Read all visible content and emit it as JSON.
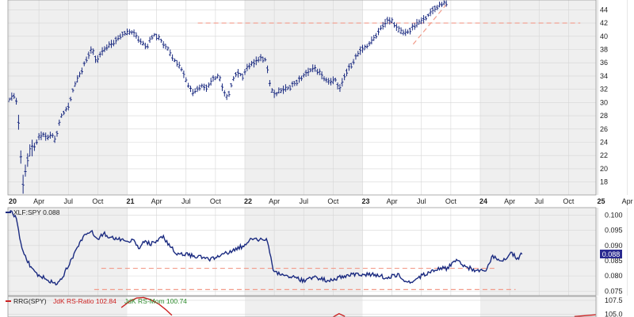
{
  "chart_data": [
    {
      "type": "ohlc",
      "ylim": [
        17,
        45
      ],
      "y_ticks": [
        18,
        20,
        22,
        24,
        26,
        28,
        30,
        32,
        34,
        36,
        38,
        40,
        42,
        44
      ],
      "x_ticks": [
        "20",
        "Apr",
        "Jul",
        "Oct",
        "21",
        "Apr",
        "Jul",
        "Oct",
        "22",
        "Apr",
        "Jul",
        "Oct",
        "23",
        "Apr",
        "Jul",
        "Oct",
        "24",
        "Apr",
        "Jul",
        "Oct",
        "25",
        "Apr"
      ],
      "price_path": [
        [
          0,
          30.5
        ],
        [
          0.04,
          31.2
        ],
        [
          0.07,
          29.5
        ],
        [
          0.085,
          24.5
        ],
        [
          0.105,
          19.5
        ],
        [
          0.115,
          17.8
        ],
        [
          0.14,
          20.5
        ],
        [
          0.17,
          22.5
        ],
        [
          0.2,
          22.8
        ],
        [
          0.24,
          24.5
        ],
        [
          0.28,
          25.2
        ],
        [
          0.32,
          24.6
        ],
        [
          0.36,
          25.3
        ],
        [
          0.38,
          24.2
        ],
        [
          0.41,
          25.5
        ],
        [
          0.43,
          27.6
        ],
        [
          0.5,
          29.5
        ],
        [
          0.55,
          32.5
        ],
        [
          0.6,
          34.2
        ],
        [
          0.65,
          36.5
        ],
        [
          0.7,
          38.0
        ],
        [
          0.74,
          36.2
        ],
        [
          0.78,
          37.5
        ],
        [
          0.83,
          38.5
        ],
        [
          0.88,
          39.0
        ],
        [
          0.93,
          40.0
        ],
        [
          0.98,
          40.5
        ],
        [
          1.02,
          40.6
        ],
        [
          1.07,
          40.3
        ],
        [
          1.12,
          39.2
        ],
        [
          1.17,
          38.5
        ],
        [
          1.22,
          40.3
        ],
        [
          1.26,
          40.0
        ],
        [
          1.3,
          39.0
        ],
        [
          1.35,
          38.0
        ],
        [
          1.4,
          36.5
        ],
        [
          1.45,
          35.5
        ],
        [
          1.5,
          33.5
        ],
        [
          1.55,
          31.5
        ],
        [
          1.62,
          32.5
        ],
        [
          1.68,
          32.3
        ],
        [
          1.73,
          33.5
        ],
        [
          1.78,
          34.0
        ],
        [
          1.82,
          31.5
        ],
        [
          1.85,
          30.5
        ],
        [
          1.89,
          33.0
        ],
        [
          1.93,
          34.5
        ],
        [
          1.98,
          34.0
        ],
        [
          2.03,
          35.5
        ],
        [
          2.08,
          36.0
        ],
        [
          2.13,
          36.8
        ],
        [
          2.18,
          36.5
        ],
        [
          2.22,
          32.0
        ],
        [
          2.26,
          31.0
        ],
        [
          2.3,
          31.8
        ],
        [
          2.37,
          32.2
        ],
        [
          2.45,
          33.2
        ],
        [
          2.53,
          34.5
        ],
        [
          2.58,
          35.3
        ],
        [
          2.63,
          34.6
        ],
        [
          2.68,
          33.5
        ],
        [
          2.72,
          33.0
        ],
        [
          2.77,
          33.5
        ],
        [
          2.8,
          31.8
        ],
        [
          2.86,
          34.5
        ],
        [
          2.93,
          36.5
        ],
        [
          2.98,
          37.8
        ],
        [
          3.04,
          38.5
        ],
        [
          3.1,
          39.8
        ],
        [
          3.16,
          41.5
        ],
        [
          3.22,
          42.5
        ],
        [
          3.26,
          42.2
        ],
        [
          3.3,
          41.0
        ],
        [
          3.35,
          40.5
        ],
        [
          3.4,
          40.8
        ],
        [
          3.45,
          41.8
        ],
        [
          3.5,
          42.3
        ],
        [
          3.55,
          43.0
        ],
        [
          3.6,
          44.0
        ],
        [
          3.66,
          44.8
        ],
        [
          3.72,
          45.2
        ]
      ],
      "resistance_level": 42,
      "trendline": [
        [
          3.43,
          38.8
        ],
        [
          3.73,
          45.2
        ]
      ]
    },
    {
      "type": "line",
      "legend": "XLF:SPY 0.088",
      "last_value": "0.088",
      "ylim": [
        0.0735,
        0.1025
      ],
      "y_ticks": [
        "0.100",
        "0.095",
        "0.090",
        "0.085",
        "0.080",
        "0.075"
      ],
      "path": [
        [
          0,
          0.1015
        ],
        [
          0.03,
          0.1005
        ],
        [
          0.06,
          0.0985
        ],
        [
          0.08,
          0.094
        ],
        [
          0.11,
          0.089
        ],
        [
          0.14,
          0.086
        ],
        [
          0.18,
          0.083
        ],
        [
          0.22,
          0.081
        ],
        [
          0.26,
          0.08
        ],
        [
          0.3,
          0.0795
        ],
        [
          0.35,
          0.078
        ],
        [
          0.4,
          0.0775
        ],
        [
          0.44,
          0.0785
        ],
        [
          0.47,
          0.081
        ],
        [
          0.5,
          0.0835
        ],
        [
          0.55,
          0.087
        ],
        [
          0.6,
          0.091
        ],
        [
          0.65,
          0.094
        ],
        [
          0.7,
          0.0945
        ],
        [
          0.75,
          0.092
        ],
        [
          0.8,
          0.094
        ],
        [
          0.85,
          0.0925
        ],
        [
          0.9,
          0.0925
        ],
        [
          1.0,
          0.091
        ],
        [
          1.05,
          0.092
        ],
        [
          1.1,
          0.089
        ],
        [
          1.15,
          0.0915
        ],
        [
          1.2,
          0.0905
        ],
        [
          1.3,
          0.093
        ],
        [
          1.36,
          0.09
        ],
        [
          1.42,
          0.0875
        ],
        [
          1.5,
          0.087
        ],
        [
          1.6,
          0.0865
        ],
        [
          1.7,
          0.0855
        ],
        [
          1.78,
          0.0865
        ],
        [
          1.85,
          0.0875
        ],
        [
          1.92,
          0.089
        ],
        [
          2.0,
          0.09
        ],
        [
          2.06,
          0.0925
        ],
        [
          2.12,
          0.0915
        ],
        [
          2.18,
          0.0925
        ],
        [
          2.2,
          0.0905
        ],
        [
          2.24,
          0.0815
        ],
        [
          2.3,
          0.0805
        ],
        [
          2.4,
          0.0795
        ],
        [
          2.5,
          0.0785
        ],
        [
          2.6,
          0.0795
        ],
        [
          2.7,
          0.0785
        ],
        [
          2.8,
          0.0795
        ],
        [
          2.9,
          0.0805
        ],
        [
          3.0,
          0.0805
        ],
        [
          3.1,
          0.0805
        ],
        [
          3.2,
          0.0795
        ],
        [
          3.3,
          0.0805
        ],
        [
          3.35,
          0.079
        ],
        [
          3.38,
          0.0775
        ],
        [
          3.43,
          0.0785
        ],
        [
          3.5,
          0.08
        ],
        [
          3.6,
          0.082
        ],
        [
          3.67,
          0.0825
        ],
        [
          3.72,
          0.0825
        ],
        [
          3.8,
          0.0855
        ],
        [
          3.88,
          0.083
        ],
        [
          3.95,
          0.082
        ],
        [
          4.05,
          0.082
        ],
        [
          4.1,
          0.0865
        ],
        [
          4.2,
          0.085
        ],
        [
          4.27,
          0.0875
        ],
        [
          4.32,
          0.0855
        ],
        [
          4.36,
          0.0875
        ]
      ],
      "support_level": 0.0825,
      "baseline_level": 0.0755
    },
    {
      "type": "line",
      "legend_prefix": "RRG(SPY)",
      "series": [
        {
          "name": "JdK RS-Ratio 102.84",
          "color": "#cc2222"
        },
        {
          "name": "JdK RS-Mom 100.74",
          "color": "#2a8a2a"
        }
      ],
      "y_ticks": [
        "107.5",
        "105.0"
      ],
      "visible_ylim": [
        104.5,
        108.2
      ]
    }
  ],
  "colors": {
    "ohlc": "#1a2a80",
    "ratio_line": "#1a2a80",
    "dashed": "#f29b8a",
    "band_alt": "#efefef",
    "value_box": "#2a2a90"
  }
}
